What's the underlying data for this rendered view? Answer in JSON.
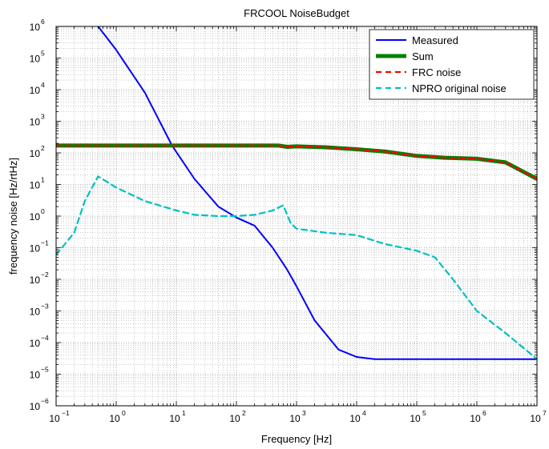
{
  "chart_data": {
    "type": "line",
    "title": "FRCOOL NoiseBudget",
    "xlabel": "Frequency [Hz]",
    "ylabel": "frequency noise [Hz/rtHz]",
    "xscale": "log",
    "yscale": "log",
    "xlim": [
      0.1,
      10000000
    ],
    "ylim": [
      1e-06,
      1000000
    ],
    "grid": true,
    "legend_position": "top-right",
    "x_tick_exponents": [
      "-1",
      "0",
      "1",
      "2",
      "3",
      "4",
      "5",
      "6",
      "7"
    ],
    "y_tick_exponents": [
      "-6",
      "-5",
      "-4",
      "-3",
      "-2",
      "-1",
      "0",
      "1",
      "2",
      "3",
      "4",
      "5",
      "6"
    ],
    "series": [
      {
        "name": "Measured",
        "color": "#0000ff",
        "dash": "solid",
        "points": [
          [
            0.5,
            1000000
          ],
          [
            1,
            180000
          ],
          [
            3,
            8000
          ],
          [
            8.5,
            170
          ],
          [
            20,
            15
          ],
          [
            50,
            2
          ],
          [
            100,
            0.9
          ],
          [
            200,
            0.5
          ],
          [
            400,
            0.1
          ],
          [
            700,
            0.02
          ],
          [
            1000,
            0.006
          ],
          [
            2000,
            0.0005
          ],
          [
            5000,
            6e-05
          ],
          [
            10000,
            3.5e-05
          ],
          [
            20000,
            3e-05
          ],
          [
            100000,
            3e-05
          ],
          [
            1000000,
            3e-05
          ],
          [
            10000000,
            3e-05
          ]
        ]
      },
      {
        "name": "Sum",
        "color": "#008000",
        "dash": "solid",
        "points": [
          [
            0.1,
            170
          ],
          [
            1,
            170
          ],
          [
            10,
            170
          ],
          [
            100,
            170
          ],
          [
            500,
            170
          ],
          [
            700,
            155
          ],
          [
            1000,
            160
          ],
          [
            3000,
            150
          ],
          [
            10000,
            130
          ],
          [
            30000,
            110
          ],
          [
            100000,
            80
          ],
          [
            300000,
            70
          ],
          [
            1000000,
            65
          ],
          [
            3000000,
            50
          ],
          [
            6000000,
            25
          ],
          [
            10000000,
            15
          ]
        ]
      },
      {
        "name": "FRC noise",
        "color": "#ff0000",
        "dash": "dashed",
        "points": [
          [
            0.1,
            170
          ],
          [
            1,
            170
          ],
          [
            10,
            170
          ],
          [
            100,
            170
          ],
          [
            500,
            170
          ],
          [
            700,
            155
          ],
          [
            1000,
            160
          ],
          [
            3000,
            150
          ],
          [
            10000,
            130
          ],
          [
            30000,
            110
          ],
          [
            100000,
            80
          ],
          [
            300000,
            70
          ],
          [
            1000000,
            65
          ],
          [
            3000000,
            50
          ],
          [
            6000000,
            25
          ],
          [
            10000000,
            15
          ]
        ]
      },
      {
        "name": "NPRO original noise",
        "color": "#00c0c0",
        "dash": "dashed",
        "points": [
          [
            0.1,
            0.06
          ],
          [
            0.2,
            0.3
          ],
          [
            0.3,
            3
          ],
          [
            0.5,
            18
          ],
          [
            1,
            8
          ],
          [
            3,
            3
          ],
          [
            10,
            1.5
          ],
          [
            20,
            1.1
          ],
          [
            50,
            1.0
          ],
          [
            100,
            1.0
          ],
          [
            200,
            1.1
          ],
          [
            400,
            1.5
          ],
          [
            600,
            2.2
          ],
          [
            800,
            0.6
          ],
          [
            1000,
            0.4
          ],
          [
            3000,
            0.3
          ],
          [
            10000,
            0.25
          ],
          [
            30000,
            0.13
          ],
          [
            100000,
            0.08
          ],
          [
            200000,
            0.05
          ],
          [
            400000,
            0.01
          ],
          [
            1000000,
            0.001
          ],
          [
            3000000,
            0.0002
          ],
          [
            10000000,
            3e-05
          ]
        ]
      }
    ]
  }
}
